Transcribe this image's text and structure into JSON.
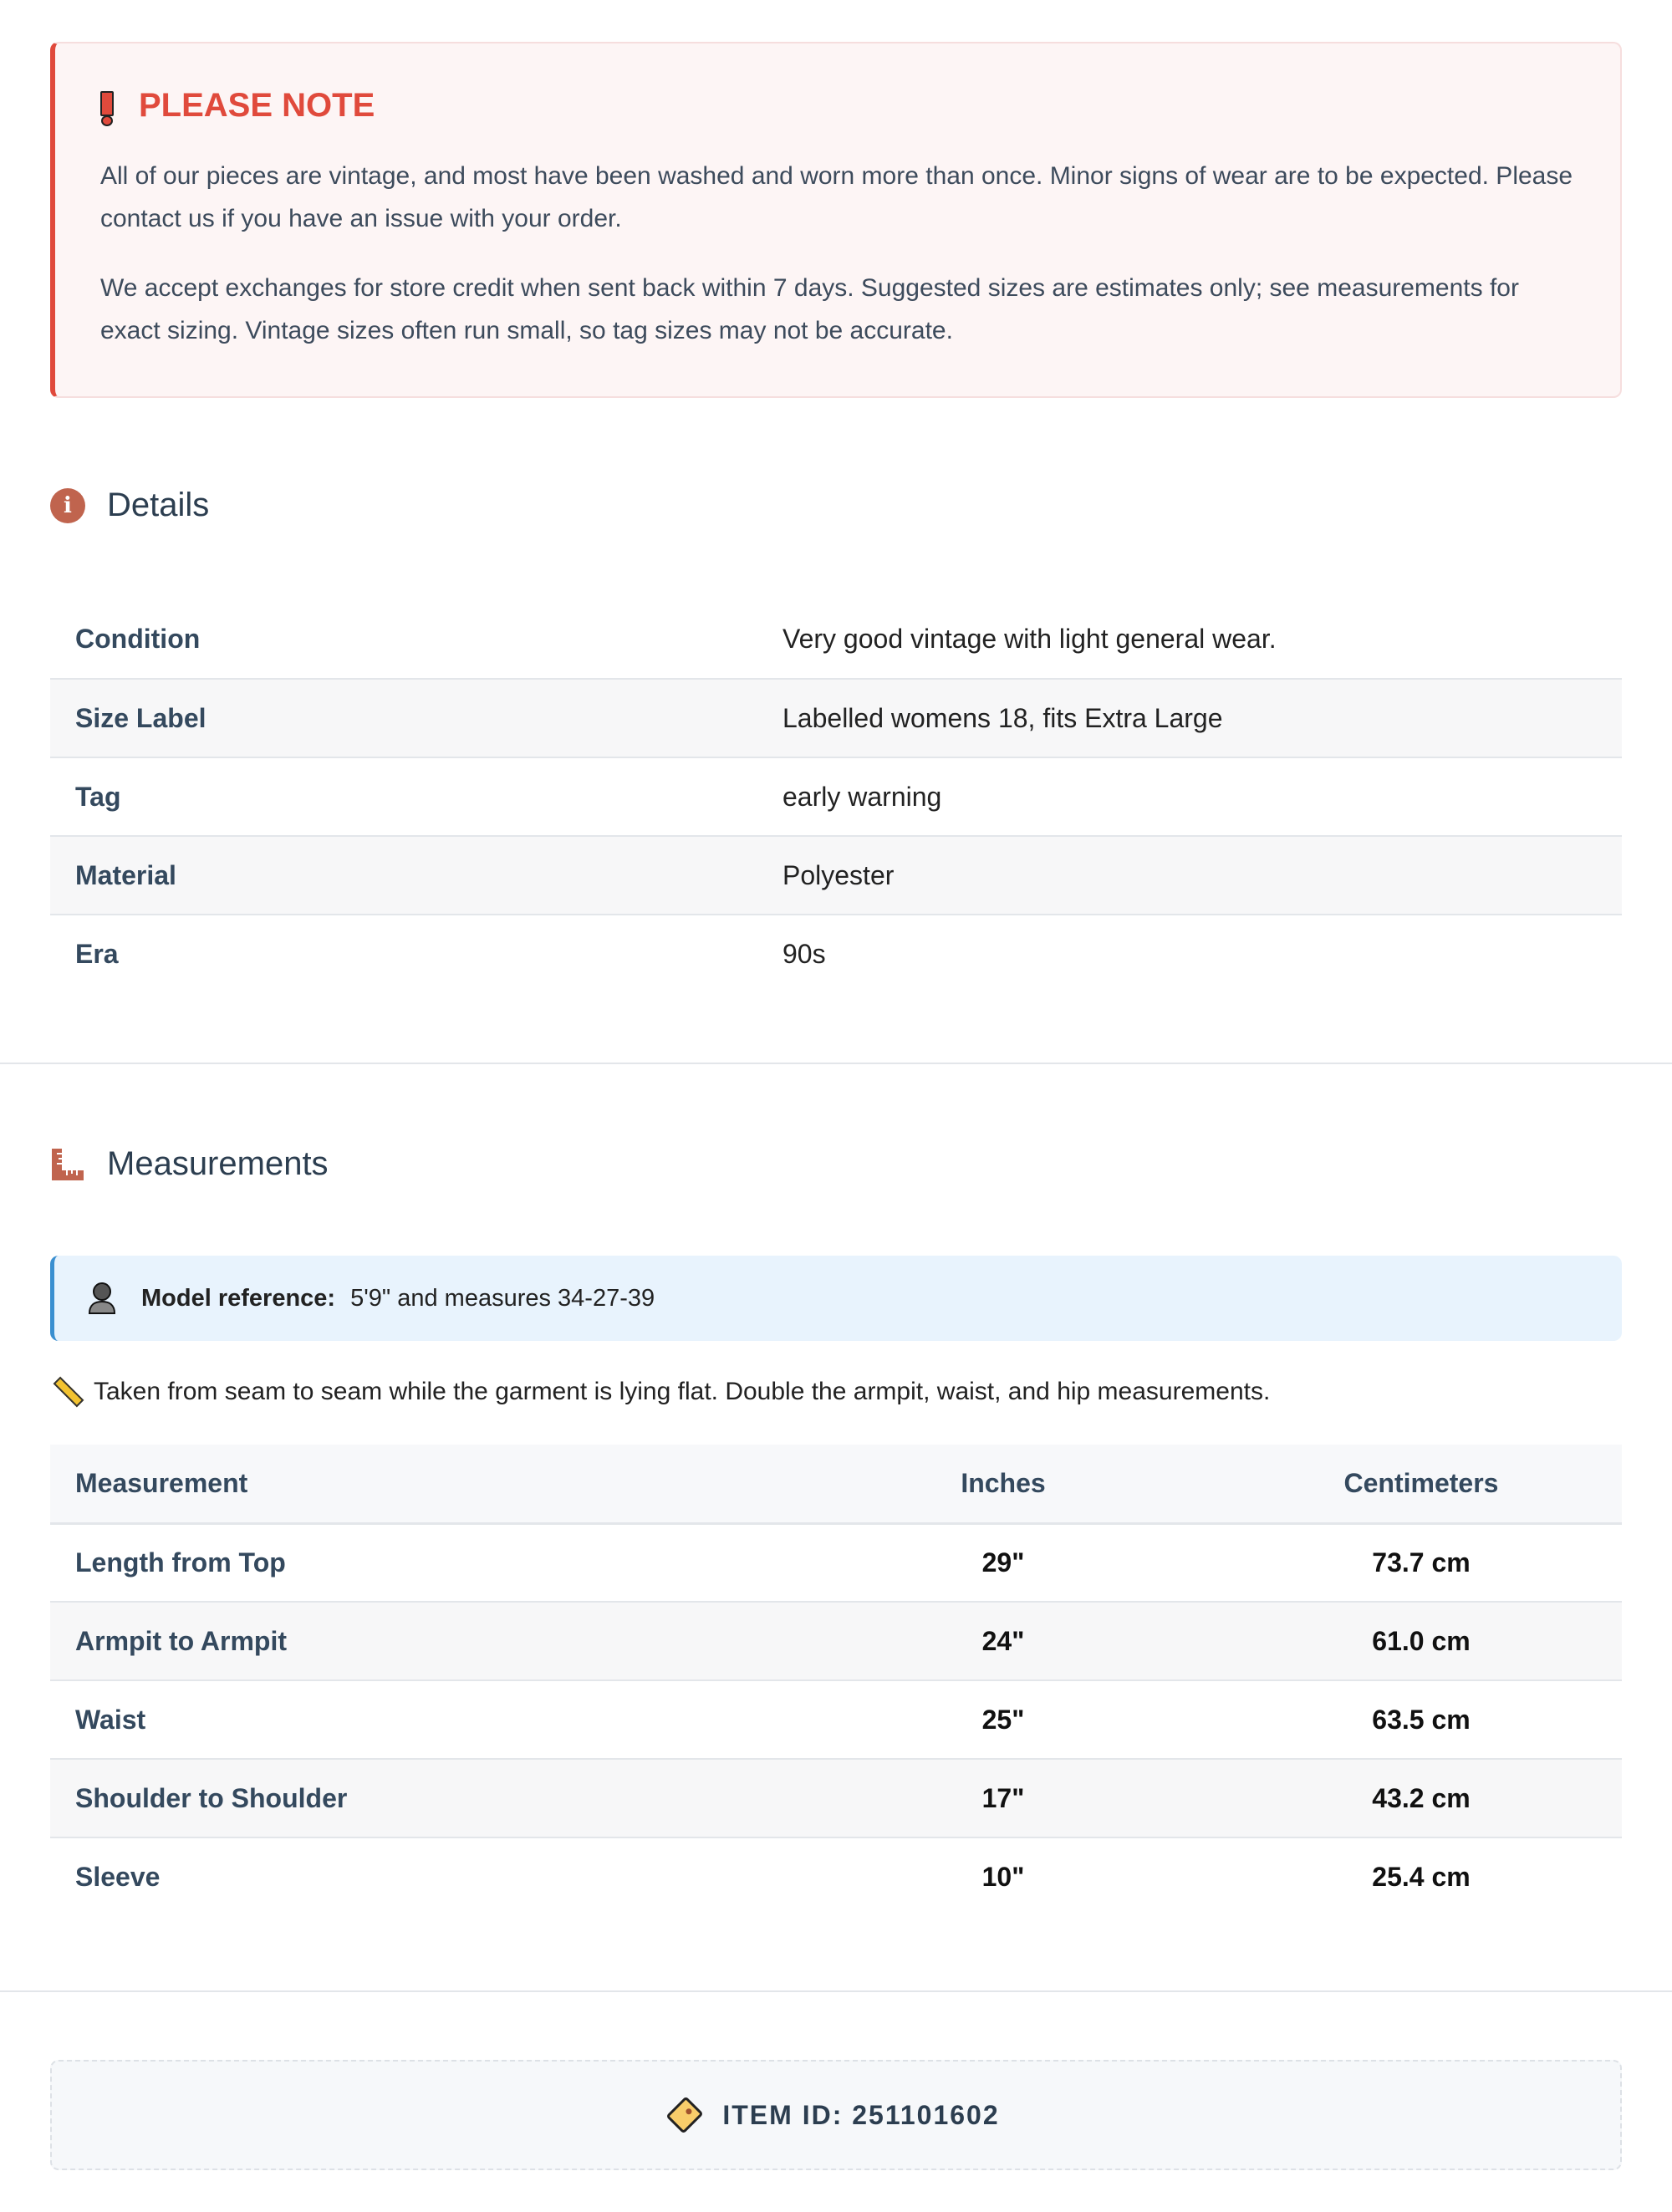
{
  "alert": {
    "icon": "exclamation-icon",
    "title": "PLEASE NOTE",
    "paragraphs": [
      "All of our pieces are vintage, and most have been washed and worn more than once. Minor signs of wear are to be expected. Please contact us if you have an issue with your order.",
      "We accept exchanges for store credit when sent back within 7 days. Suggested sizes are estimates only; see measurements for exact sizing. Vintage sizes often run small, so tag sizes may not be accurate."
    ],
    "accent": "#e04a3c"
  },
  "details": {
    "title": "Details",
    "icon": "info-icon",
    "rows": [
      {
        "label": "Condition",
        "value": "Very good vintage with light general wear."
      },
      {
        "label": "Size Label",
        "value": "Labelled womens 18, fits Extra Large"
      },
      {
        "label": "Tag",
        "value": "early warning"
      },
      {
        "label": "Material",
        "value": "Polyester"
      },
      {
        "label": "Era",
        "value": "90s"
      }
    ]
  },
  "measurements": {
    "title": "Measurements",
    "icon": "ruler-icon",
    "model_label": "Model reference:",
    "model_value": "5'9\" and measures 34-27-39",
    "note": "Taken from seam to seam while the garment is lying flat. Double the armpit, waist, and hip measurements.",
    "headers": [
      "Measurement",
      "Inches",
      "Centimeters"
    ],
    "rows": [
      {
        "name": "Length from Top",
        "inches": "29\"",
        "cm": "73.7 cm"
      },
      {
        "name": "Armpit to Armpit",
        "inches": "24\"",
        "cm": "61.0 cm"
      },
      {
        "name": "Waist",
        "inches": "25\"",
        "cm": "63.5 cm"
      },
      {
        "name": "Shoulder to Shoulder",
        "inches": "17\"",
        "cm": "43.2 cm"
      },
      {
        "name": "Sleeve",
        "inches": "10\"",
        "cm": "25.4 cm"
      }
    ]
  },
  "item": {
    "icon": "tag-icon",
    "label": "ITEM ID: 251101602"
  }
}
